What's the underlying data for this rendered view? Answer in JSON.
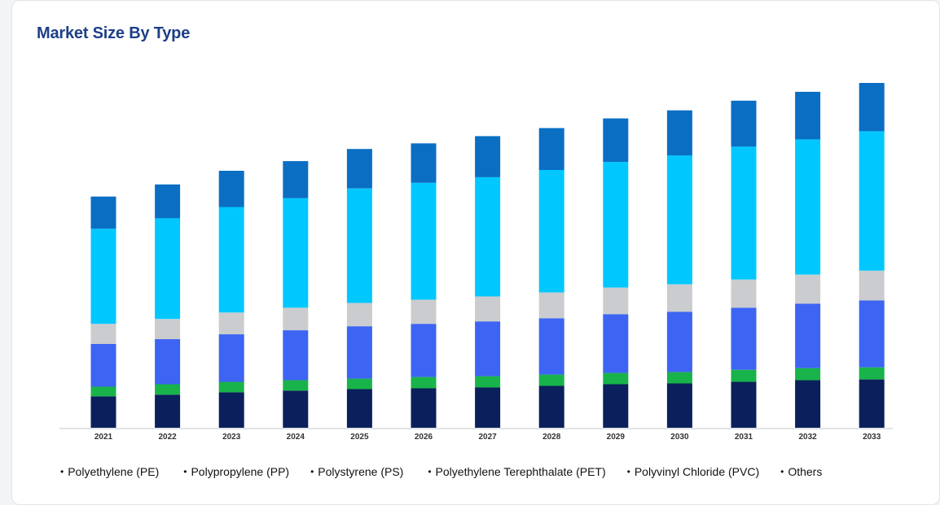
{
  "title": "Market Size By Type",
  "chart_data": {
    "type": "bar",
    "stacked": true,
    "title": "Market Size By Type",
    "xlabel": "",
    "ylabel": "",
    "grid": false,
    "legend_position": "bottom",
    "categories": [
      "2021",
      "2022",
      "2023",
      "2024",
      "2025",
      "2026",
      "2027",
      "2028",
      "2029",
      "2030",
      "2031",
      "2032",
      "2033"
    ],
    "ylim": [
      0,
      430
    ],
    "series": [
      {
        "name": "Polyethylene (PE)",
        "color": "#0b1f5c",
        "values": [
          39,
          41,
          44,
          46,
          48,
          49,
          50,
          52,
          54,
          55,
          57,
          59,
          60
        ]
      },
      {
        "name": "Polypropylene (PP)",
        "color": "#18b34a",
        "values": [
          12,
          13,
          13,
          13,
          13,
          14,
          14,
          14,
          14,
          14,
          15,
          15,
          15
        ]
      },
      {
        "name": "Polystyrene (PS)",
        "color": "#3d64f3",
        "values": [
          53,
          56,
          59,
          62,
          65,
          66,
          68,
          70,
          73,
          75,
          77,
          80,
          83
        ]
      },
      {
        "name": "Polyethylene Terephthalate (PET)",
        "color": "#cbcccf",
        "values": [
          25,
          25,
          27,
          28,
          29,
          30,
          31,
          32,
          33,
          34,
          35,
          36,
          37
        ]
      },
      {
        "name": "Polyvinyl Chloride (PVC)",
        "color": "#00c8ff",
        "values": [
          118,
          125,
          131,
          136,
          142,
          145,
          148,
          152,
          156,
          160,
          165,
          168,
          173
        ]
      },
      {
        "name": "Others",
        "color": "#0a6ec3",
        "values": [
          40,
          42,
          45,
          46,
          49,
          49,
          51,
          52,
          54,
          56,
          57,
          59,
          60
        ]
      }
    ]
  }
}
